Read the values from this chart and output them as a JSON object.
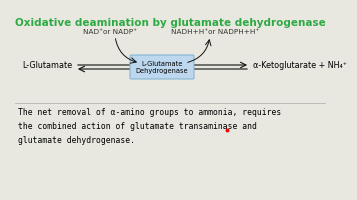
{
  "title": "Oxidative deamination by glutamate dehydrogenase",
  "title_color": "#2eaa44",
  "title_fontsize": 7.5,
  "bg_color": "#e8e8e0",
  "left_label": "L-Glutamate",
  "right_label": "α-Ketoglutarate + NH₄⁺",
  "top_left_label": "NAD⁺or NADP⁺",
  "top_right_label": "NADH+H⁺or NADPH+H⁺",
  "box_label": "L-Glutamate\nDehydrogenase",
  "box_color": "#bdd8ee",
  "box_edge_color": "#7ab0d0",
  "body_text_line1": "The net removal of α-amino groups to ammonia, requires",
  "body_text_line2": "the combined action of glutamate transaminase and",
  "body_text_line3": "glutamate dehydrogenase.",
  "body_fontsize": 5.8,
  "arrow_color": "#111111",
  "label_fontsize": 5.8,
  "coenzyme_fontsize": 5.2
}
